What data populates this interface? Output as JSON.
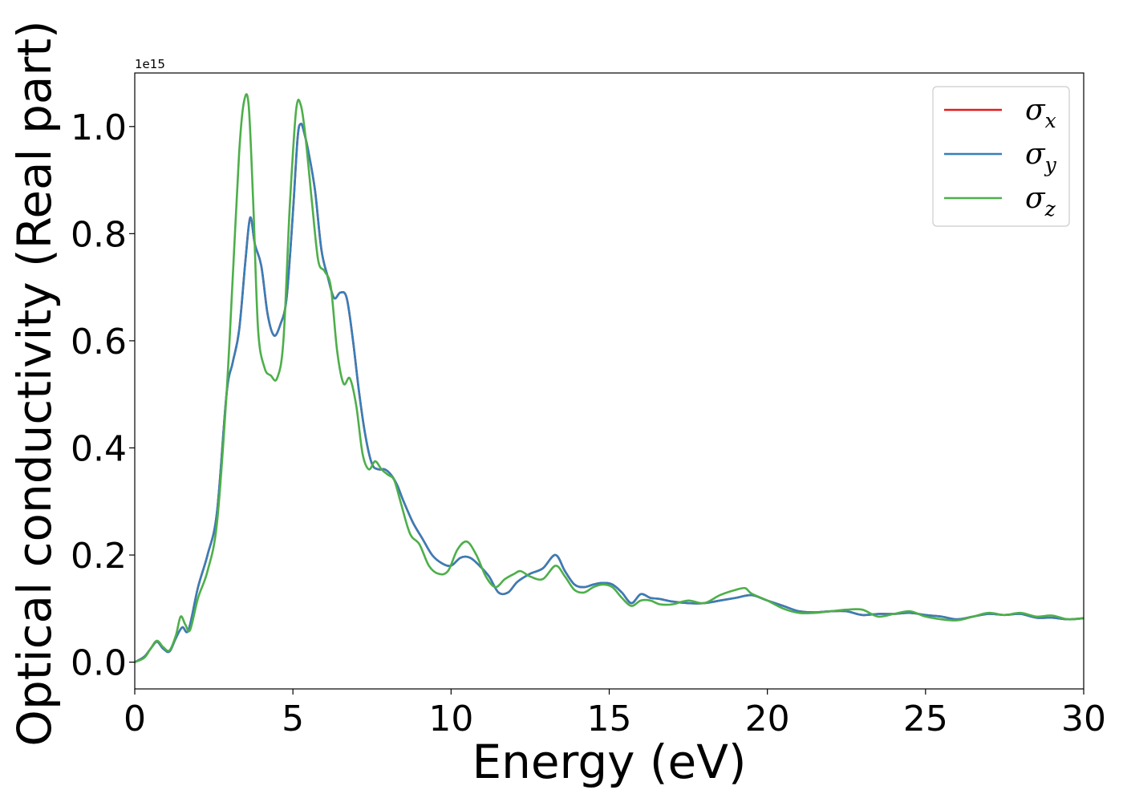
{
  "chart_data": {
    "type": "line",
    "xlabel": "Energy (eV)",
    "ylabel": "Optical conductivity (Real part)",
    "y_offset_label": "1e15",
    "xlim": [
      0,
      30
    ],
    "ylim": [
      -0.05,
      1.1
    ],
    "x_ticks": [
      0,
      5,
      10,
      15,
      20,
      25,
      30
    ],
    "x_tick_labels": [
      "0",
      "5",
      "10",
      "15",
      "20",
      "25",
      "30"
    ],
    "y_ticks": [
      0.0,
      0.2,
      0.4,
      0.6,
      0.8,
      1.0
    ],
    "y_tick_labels": [
      "0.0",
      "0.2",
      "0.4",
      "0.6",
      "0.8",
      "1.0"
    ],
    "grid": false,
    "legend_position": "top-right",
    "legend": [
      {
        "symbol": "σ",
        "subscript": "x",
        "color": "#e41a1c"
      },
      {
        "symbol": "σ",
        "subscript": "y",
        "color": "#377eb8"
      },
      {
        "symbol": "σ",
        "subscript": "z",
        "color": "#4daf4a"
      }
    ],
    "series": [
      {
        "color": "#e41a1c",
        "x": [
          0,
          0.3,
          0.5,
          0.7,
          0.9,
          1.1,
          1.3,
          1.5,
          1.7,
          2.0,
          2.3,
          2.6,
          2.9,
          3.1,
          3.3,
          3.5,
          3.65,
          3.8,
          4.0,
          4.2,
          4.4,
          4.6,
          4.8,
          5.0,
          5.15,
          5.25,
          5.35,
          5.5,
          5.7,
          5.9,
          6.1,
          6.3,
          6.5,
          6.7,
          6.9,
          7.1,
          7.3,
          7.5,
          7.7,
          7.9,
          8.1,
          8.3,
          8.5,
          8.8,
          9.1,
          9.4,
          9.7,
          10.0,
          10.3,
          10.6,
          10.9,
          11.2,
          11.5,
          11.8,
          12.1,
          12.5,
          12.9,
          13.3,
          13.6,
          13.9,
          14.2,
          14.5,
          14.8,
          15.1,
          15.4,
          15.7,
          16.0,
          16.3,
          16.6,
          17.0,
          17.5,
          18.0,
          18.5,
          19.0,
          19.5,
          20.0,
          20.5,
          21.0,
          21.5,
          22.0,
          22.5,
          23.0,
          23.5,
          24.0,
          24.5,
          25.0,
          25.5,
          26.0,
          26.5,
          27.0,
          27.5,
          28.0,
          28.5,
          29.0,
          29.5,
          30.0
        ],
        "y": [
          0.0,
          0.01,
          0.025,
          0.038,
          0.025,
          0.02,
          0.045,
          0.065,
          0.06,
          0.14,
          0.2,
          0.28,
          0.5,
          0.56,
          0.62,
          0.75,
          0.83,
          0.78,
          0.74,
          0.65,
          0.61,
          0.63,
          0.68,
          0.84,
          0.98,
          1.005,
          0.99,
          0.95,
          0.88,
          0.77,
          0.72,
          0.68,
          0.69,
          0.68,
          0.6,
          0.5,
          0.42,
          0.37,
          0.36,
          0.36,
          0.35,
          0.33,
          0.3,
          0.26,
          0.23,
          0.2,
          0.185,
          0.18,
          0.195,
          0.195,
          0.18,
          0.16,
          0.13,
          0.13,
          0.15,
          0.165,
          0.175,
          0.2,
          0.17,
          0.145,
          0.14,
          0.145,
          0.148,
          0.145,
          0.13,
          0.11,
          0.127,
          0.12,
          0.118,
          0.113,
          0.11,
          0.11,
          0.115,
          0.12,
          0.125,
          0.115,
          0.105,
          0.095,
          0.093,
          0.095,
          0.095,
          0.088,
          0.09,
          0.09,
          0.092,
          0.088,
          0.085,
          0.08,
          0.085,
          0.09,
          0.088,
          0.09,
          0.083,
          0.083,
          0.08,
          0.082
        ]
      },
      {
        "color": "#377eb8",
        "x": [
          0,
          0.3,
          0.5,
          0.7,
          0.9,
          1.1,
          1.3,
          1.5,
          1.7,
          2.0,
          2.3,
          2.6,
          2.9,
          3.1,
          3.3,
          3.5,
          3.65,
          3.8,
          4.0,
          4.2,
          4.4,
          4.6,
          4.8,
          5.0,
          5.15,
          5.25,
          5.35,
          5.5,
          5.7,
          5.9,
          6.1,
          6.3,
          6.5,
          6.7,
          6.9,
          7.1,
          7.3,
          7.5,
          7.7,
          7.9,
          8.1,
          8.3,
          8.5,
          8.8,
          9.1,
          9.4,
          9.7,
          10.0,
          10.3,
          10.6,
          10.9,
          11.2,
          11.5,
          11.8,
          12.1,
          12.5,
          12.9,
          13.3,
          13.6,
          13.9,
          14.2,
          14.5,
          14.8,
          15.1,
          15.4,
          15.7,
          16.0,
          16.3,
          16.6,
          17.0,
          17.5,
          18.0,
          18.5,
          19.0,
          19.5,
          20.0,
          20.5,
          21.0,
          21.5,
          22.0,
          22.5,
          23.0,
          23.5,
          24.0,
          24.5,
          25.0,
          25.5,
          26.0,
          26.5,
          27.0,
          27.5,
          28.0,
          28.5,
          29.0,
          29.5,
          30.0
        ],
        "y": [
          0.0,
          0.01,
          0.025,
          0.038,
          0.025,
          0.02,
          0.045,
          0.065,
          0.06,
          0.14,
          0.2,
          0.28,
          0.5,
          0.56,
          0.62,
          0.75,
          0.83,
          0.78,
          0.74,
          0.65,
          0.61,
          0.63,
          0.68,
          0.84,
          0.98,
          1.005,
          0.99,
          0.95,
          0.88,
          0.77,
          0.72,
          0.68,
          0.69,
          0.68,
          0.6,
          0.5,
          0.42,
          0.37,
          0.36,
          0.36,
          0.35,
          0.33,
          0.3,
          0.26,
          0.23,
          0.2,
          0.185,
          0.18,
          0.195,
          0.195,
          0.18,
          0.16,
          0.13,
          0.13,
          0.15,
          0.165,
          0.175,
          0.2,
          0.17,
          0.145,
          0.14,
          0.145,
          0.148,
          0.145,
          0.13,
          0.11,
          0.127,
          0.12,
          0.118,
          0.113,
          0.11,
          0.11,
          0.115,
          0.12,
          0.125,
          0.115,
          0.105,
          0.095,
          0.093,
          0.095,
          0.095,
          0.088,
          0.09,
          0.09,
          0.092,
          0.088,
          0.085,
          0.08,
          0.085,
          0.09,
          0.088,
          0.09,
          0.083,
          0.083,
          0.08,
          0.082
        ]
      },
      {
        "color": "#4daf4a",
        "x": [
          0,
          0.3,
          0.5,
          0.7,
          0.9,
          1.1,
          1.3,
          1.45,
          1.6,
          1.75,
          2.0,
          2.3,
          2.6,
          2.9,
          3.1,
          3.3,
          3.45,
          3.6,
          3.75,
          3.9,
          4.1,
          4.3,
          4.5,
          4.7,
          4.9,
          5.1,
          5.25,
          5.4,
          5.6,
          5.8,
          6.0,
          6.2,
          6.4,
          6.6,
          6.8,
          7.0,
          7.2,
          7.4,
          7.6,
          7.8,
          8.0,
          8.2,
          8.4,
          8.7,
          9.0,
          9.3,
          9.6,
          9.9,
          10.2,
          10.5,
          10.8,
          11.1,
          11.4,
          11.7,
          12.0,
          12.2,
          12.5,
          12.9,
          13.3,
          13.6,
          13.9,
          14.2,
          14.5,
          14.8,
          15.1,
          15.4,
          15.7,
          16.0,
          16.3,
          16.6,
          17.0,
          17.5,
          18.0,
          18.5,
          19.0,
          19.3,
          19.5,
          20.0,
          20.5,
          21.0,
          21.5,
          22.0,
          22.5,
          23.0,
          23.5,
          24.0,
          24.5,
          25.0,
          25.5,
          26.0,
          26.5,
          27.0,
          27.5,
          28.0,
          28.5,
          29.0,
          29.5,
          30.0
        ],
        "y": [
          0.0,
          0.008,
          0.025,
          0.04,
          0.028,
          0.022,
          0.05,
          0.085,
          0.07,
          0.06,
          0.12,
          0.17,
          0.26,
          0.5,
          0.72,
          0.95,
          1.045,
          1.04,
          0.85,
          0.62,
          0.55,
          0.535,
          0.53,
          0.6,
          0.85,
          1.03,
          1.04,
          0.98,
          0.86,
          0.75,
          0.73,
          0.7,
          0.58,
          0.52,
          0.53,
          0.48,
          0.39,
          0.36,
          0.375,
          0.36,
          0.35,
          0.34,
          0.3,
          0.24,
          0.22,
          0.18,
          0.165,
          0.17,
          0.21,
          0.225,
          0.2,
          0.16,
          0.14,
          0.155,
          0.165,
          0.17,
          0.16,
          0.155,
          0.18,
          0.16,
          0.135,
          0.13,
          0.14,
          0.145,
          0.14,
          0.12,
          0.105,
          0.115,
          0.115,
          0.108,
          0.108,
          0.115,
          0.11,
          0.125,
          0.135,
          0.138,
          0.128,
          0.115,
          0.1,
          0.092,
          0.092,
          0.095,
          0.098,
          0.098,
          0.085,
          0.09,
          0.095,
          0.085,
          0.08,
          0.078,
          0.085,
          0.092,
          0.088,
          0.092,
          0.085,
          0.087,
          0.08,
          0.082
        ]
      }
    ]
  }
}
